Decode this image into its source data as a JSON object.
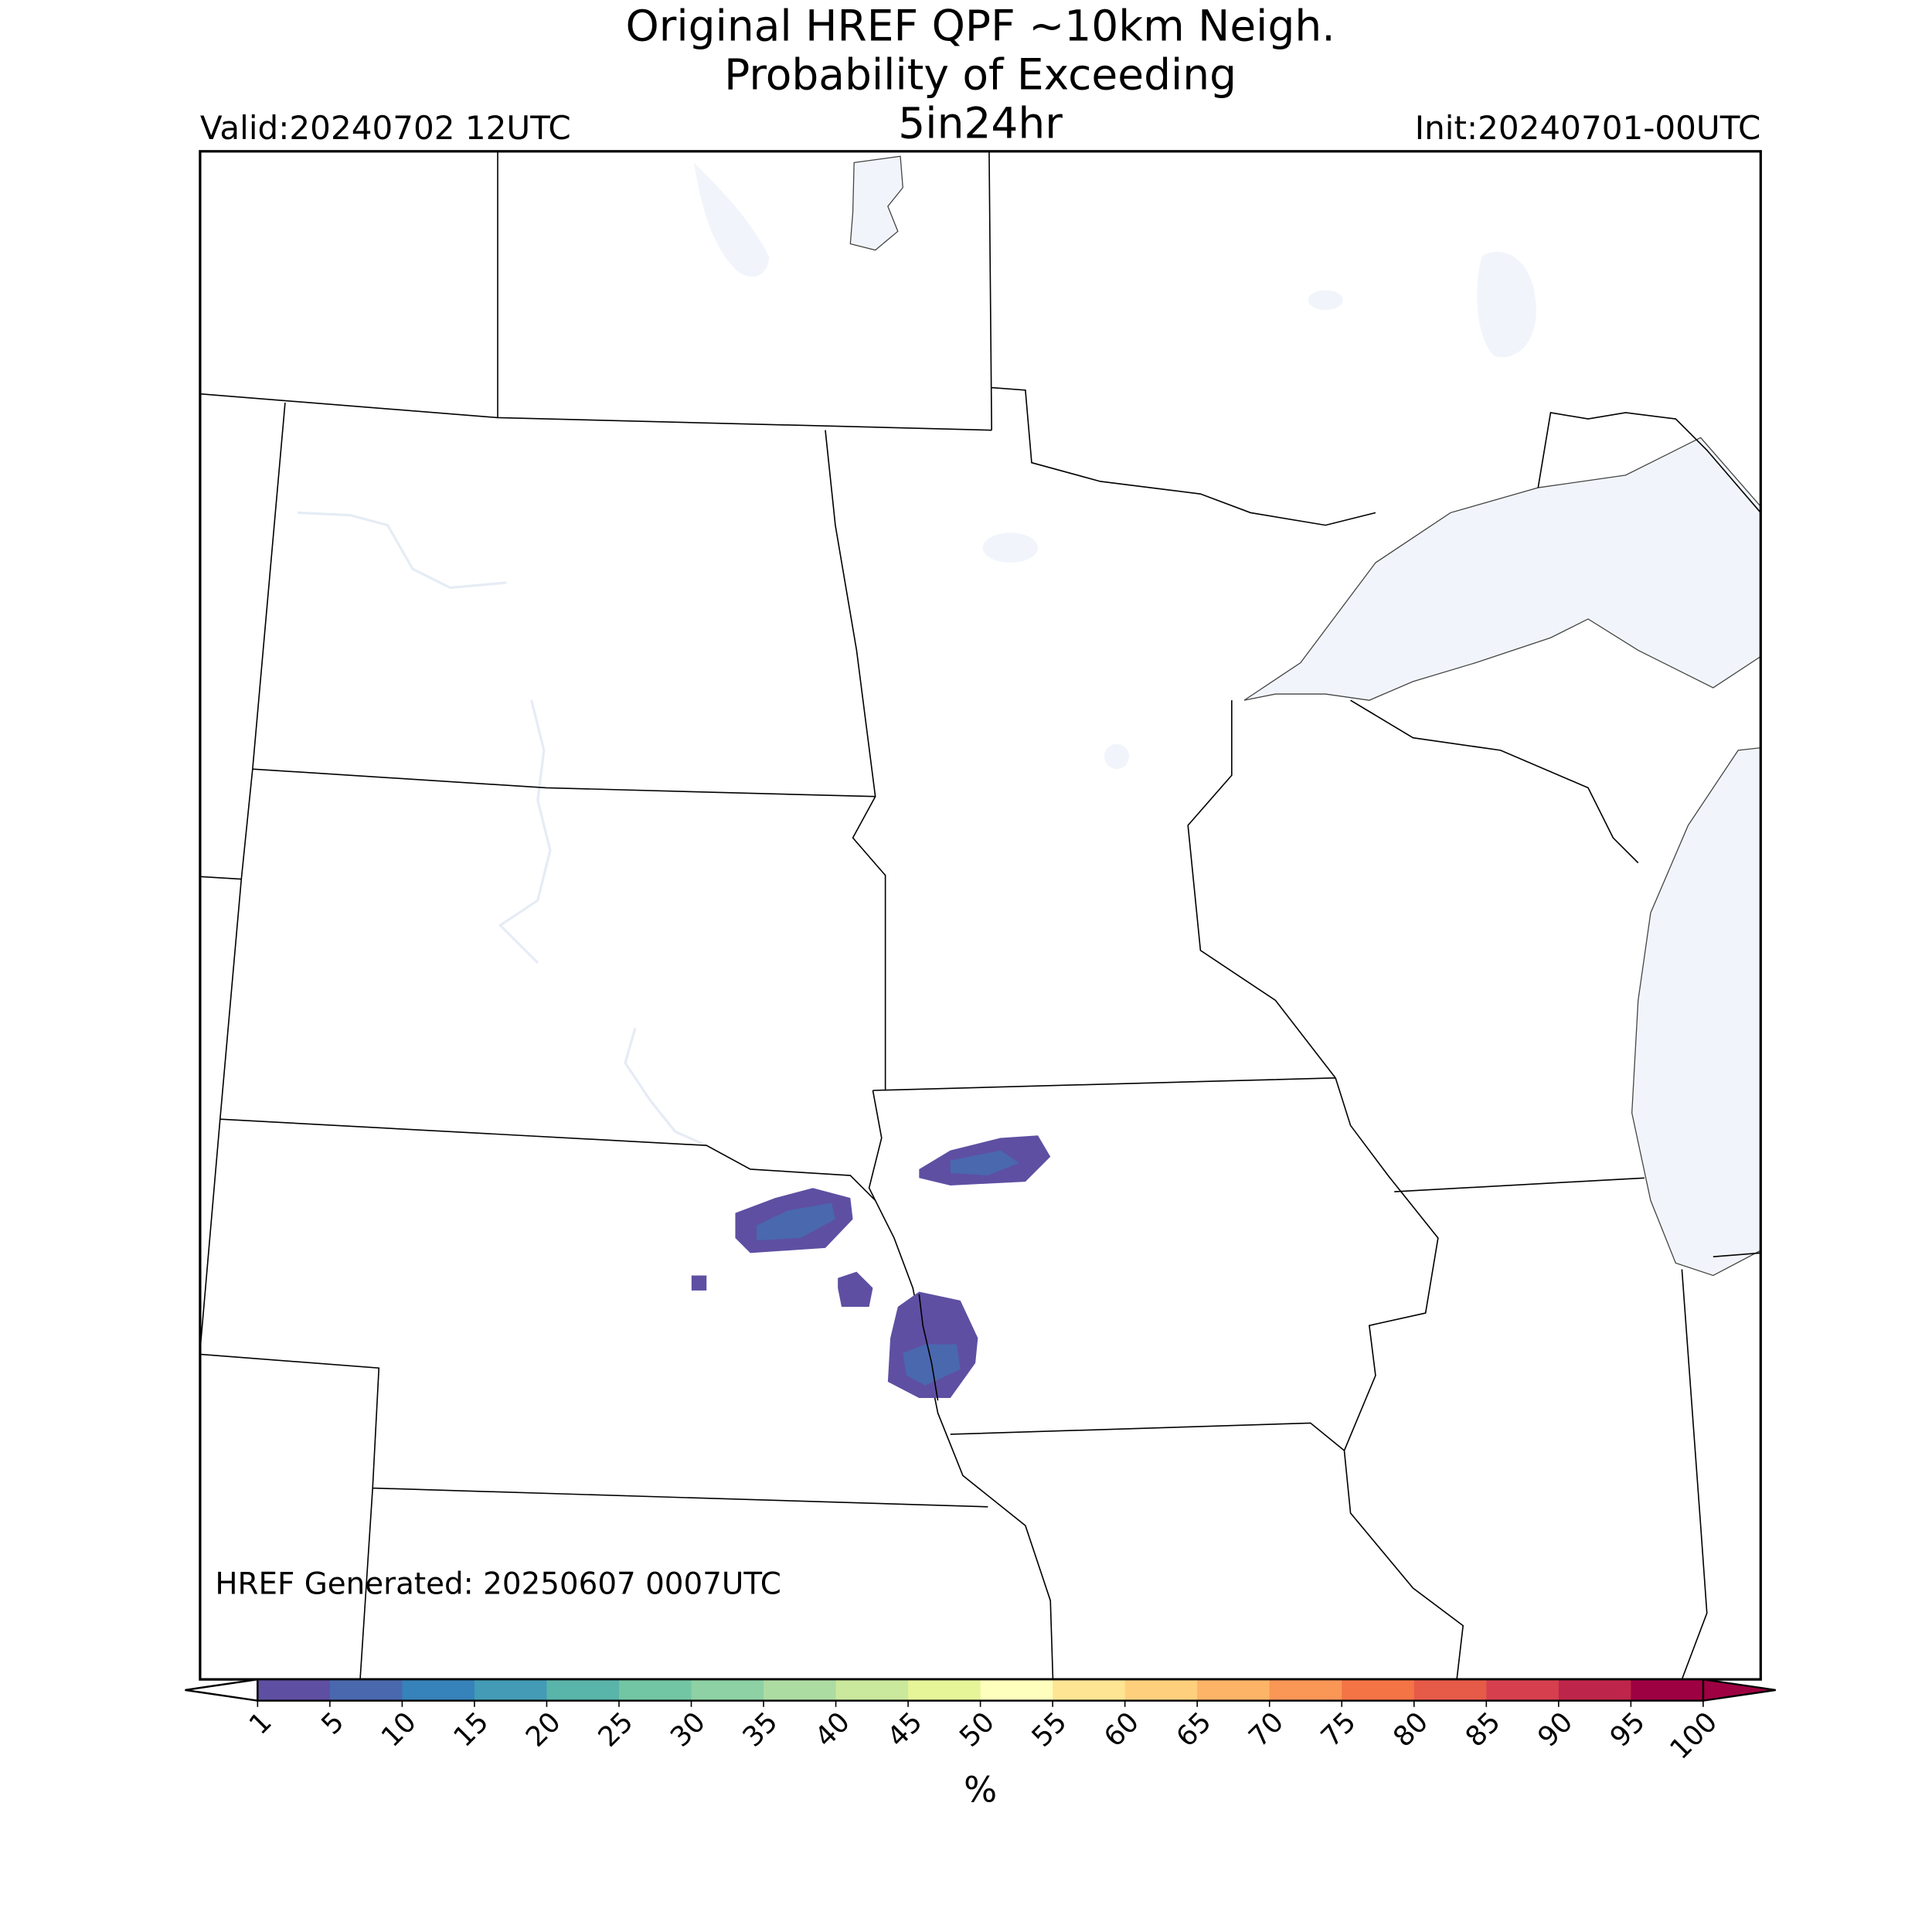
{
  "title": [
    "Original HREF QPF ~10km Neigh.",
    "Probability of Exceeding",
    "5in24hr"
  ],
  "valid": "Valid:20240702 12UTC",
  "init": "Init:20240701-00UTC",
  "generated": "HREF Generated: 20250607 0007UTC",
  "colorbar": {
    "label": "%",
    "ticks": [
      1,
      5,
      10,
      15,
      20,
      25,
      30,
      35,
      40,
      45,
      50,
      55,
      60,
      65,
      70,
      75,
      80,
      85,
      90,
      95,
      100
    ],
    "colors": [
      "#5e4fa2",
      "#4a68ae",
      "#3682ba",
      "#439bb5",
      "#59b4aa",
      "#72c6a4",
      "#8dd1a4",
      "#addca2",
      "#cbe99d",
      "#e6f598",
      "#fefebd",
      "#fee593",
      "#fed07d",
      "#fdb466",
      "#fa9656",
      "#f57446",
      "#e65a48",
      "#d6404e",
      "#be254a",
      "#9e0142"
    ],
    "under_color": "#ffffff",
    "over_color": "#9e0142"
  }
}
